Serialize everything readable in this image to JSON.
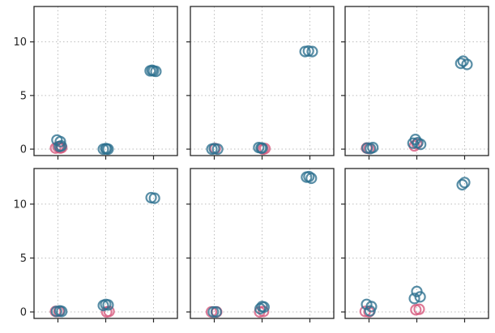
{
  "colors": {
    "pink": "#d6547a",
    "teal": "#2c6f8e",
    "frame": "#262626",
    "grid": "#bdbdbd"
  },
  "shared": {
    "ylim": [
      -0.6,
      13.3
    ],
    "xlim": [
      -0.5,
      2.5
    ],
    "yticks": [
      0,
      5,
      10
    ],
    "grid": true,
    "xtick_labels": false
  },
  "chart_data": [
    {
      "type": "scatter",
      "title": "",
      "series": [
        {
          "name": "",
          "color": "pink",
          "points": [
            [
              -0.05,
              0.1
            ],
            [
              0.0,
              0.2
            ],
            [
              0.05,
              0.1
            ],
            [
              0.08,
              0.15
            ]
          ]
        },
        {
          "name": "",
          "color": "teal",
          "points": [
            [
              -0.02,
              0.85
            ],
            [
              0.05,
              0.7
            ],
            [
              0.07,
              0.3
            ],
            [
              0.03,
              0.25
            ],
            [
              0.95,
              0.0
            ],
            [
              1.0,
              0.05
            ],
            [
              1.05,
              0.0
            ],
            [
              1.02,
              0.02
            ],
            [
              1.93,
              7.3
            ],
            [
              2.0,
              7.3
            ],
            [
              2.05,
              7.25
            ],
            [
              1.97,
              7.35
            ]
          ]
        }
      ]
    },
    {
      "type": "scatter",
      "title": "",
      "series": [
        {
          "name": "",
          "color": "pink",
          "points": [
            [
              0.02,
              0.05
            ],
            [
              1.02,
              0.0
            ],
            [
              1.06,
              0.05
            ]
          ]
        },
        {
          "name": "",
          "color": "teal",
          "points": [
            [
              -0.05,
              0.0
            ],
            [
              0.0,
              0.05
            ],
            [
              0.07,
              0.0
            ],
            [
              0.93,
              0.15
            ],
            [
              0.98,
              0.1
            ],
            [
              1.0,
              0.1
            ],
            [
              1.9,
              9.1
            ],
            [
              1.97,
              9.15
            ],
            [
              2.05,
              9.1
            ]
          ]
        }
      ]
    },
    {
      "type": "scatter",
      "title": "",
      "series": [
        {
          "name": "",
          "color": "pink",
          "points": [
            [
              -0.05,
              0.1
            ],
            [
              0.0,
              0.05
            ],
            [
              0.95,
              0.3
            ],
            [
              1.0,
              0.5
            ]
          ]
        },
        {
          "name": "",
          "color": "teal",
          "points": [
            [
              -0.04,
              0.1
            ],
            [
              0.03,
              0.05
            ],
            [
              0.08,
              0.15
            ],
            [
              0.92,
              0.55
            ],
            [
              0.97,
              0.9
            ],
            [
              1.02,
              0.6
            ],
            [
              1.08,
              0.45
            ],
            [
              1.92,
              8.0
            ],
            [
              1.97,
              8.2
            ],
            [
              2.05,
              7.9
            ]
          ]
        }
      ]
    },
    {
      "type": "scatter",
      "title": "",
      "series": [
        {
          "name": "",
          "color": "pink",
          "points": [
            [
              -0.05,
              0.05
            ],
            [
              0.02,
              0.05
            ],
            [
              1.02,
              0.0
            ],
            [
              1.07,
              0.05
            ]
          ]
        },
        {
          "name": "",
          "color": "teal",
          "points": [
            [
              -0.03,
              0.05
            ],
            [
              0.04,
              0.1
            ],
            [
              0.08,
              0.05
            ],
            [
              0.95,
              0.6
            ],
            [
              1.0,
              0.7
            ],
            [
              1.05,
              0.65
            ],
            [
              1.95,
              10.6
            ],
            [
              2.02,
              10.55
            ]
          ]
        }
      ]
    },
    {
      "type": "scatter",
      "title": "",
      "series": [
        {
          "name": "",
          "color": "pink",
          "points": [
            [
              -0.06,
              0.0
            ],
            [
              0.05,
              0.0
            ],
            [
              0.95,
              0.0
            ],
            [
              1.03,
              0.05
            ]
          ]
        },
        {
          "name": "",
          "color": "teal",
          "points": [
            [
              -0.02,
              0.0
            ],
            [
              0.04,
              0.0
            ],
            [
              0.96,
              0.3
            ],
            [
              1.0,
              0.5
            ],
            [
              1.04,
              0.45
            ],
            [
              1.93,
              12.5
            ],
            [
              1.98,
              12.55
            ],
            [
              2.03,
              12.4
            ]
          ]
        }
      ]
    },
    {
      "type": "scatter",
      "title": "",
      "series": [
        {
          "name": "",
          "color": "pink",
          "points": [
            [
              -0.08,
              0.05
            ],
            [
              0.0,
              0.0
            ],
            [
              0.98,
              0.2
            ],
            [
              1.05,
              0.25
            ]
          ]
        },
        {
          "name": "",
          "color": "teal",
          "points": [
            [
              -0.05,
              0.7
            ],
            [
              0.05,
              0.5
            ],
            [
              0.02,
              0.1
            ],
            [
              0.95,
              1.25
            ],
            [
              1.0,
              1.9
            ],
            [
              1.07,
              1.4
            ],
            [
              1.95,
              11.8
            ],
            [
              2.0,
              12.0
            ]
          ]
        }
      ]
    }
  ]
}
